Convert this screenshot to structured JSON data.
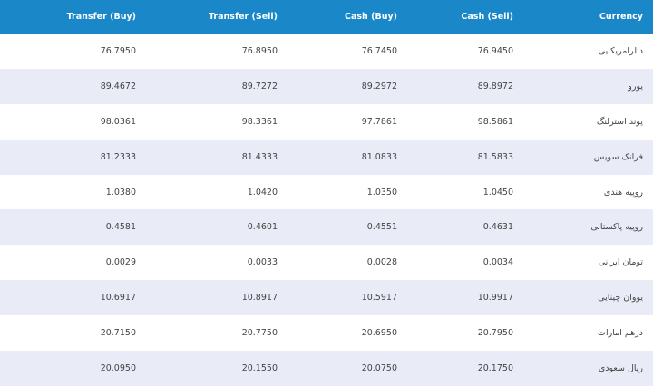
{
  "header": {
    "transfer_buy": "Transfer (Buy)",
    "transfer_sell": "Transfer (Sell)",
    "cash_buy": "Cash (Buy)",
    "cash_sell": "Cash (Sell)",
    "currency": "Currency"
  },
  "rows": [
    {
      "transfer_buy": "76.7950",
      "transfer_sell": "76.8950",
      "cash_buy": "76.7450",
      "cash_sell": "76.9450",
      "currency": "دالرامریکایی"
    },
    {
      "transfer_buy": "89.4672",
      "transfer_sell": "89.7272",
      "cash_buy": "89.2972",
      "cash_sell": "89.8972",
      "currency": "یورو"
    },
    {
      "transfer_buy": "98.0361",
      "transfer_sell": "98.3361",
      "cash_buy": "97.7861",
      "cash_sell": "98.5861",
      "currency": "پوند استرلنگ"
    },
    {
      "transfer_buy": "81.2333",
      "transfer_sell": "81.4333",
      "cash_buy": "81.0833",
      "cash_sell": "81.5833",
      "currency": "فرانک سویس"
    },
    {
      "transfer_buy": "1.0380",
      "transfer_sell": "1.0420",
      "cash_buy": "1.0350",
      "cash_sell": "1.0450",
      "currency": "روپیه هندی"
    },
    {
      "transfer_buy": "0.4581",
      "transfer_sell": "0.4601",
      "cash_buy": "0.4551",
      "cash_sell": "0.4631",
      "currency": "روپیه پاکستانی"
    },
    {
      "transfer_buy": "0.0029",
      "transfer_sell": "0.0033",
      "cash_buy": "0.0028",
      "cash_sell": "0.0034",
      "currency": "تومان ایرانی"
    },
    {
      "transfer_buy": "10.6917",
      "transfer_sell": "10.8917",
      "cash_buy": "10.5917",
      "cash_sell": "10.9917",
      "currency": "یووان چینایی"
    },
    {
      "transfer_buy": "20.7150",
      "transfer_sell": "20.7750",
      "cash_buy": "20.6950",
      "cash_sell": "20.7950",
      "currency": "درهم امارات"
    },
    {
      "transfer_buy": "20.0950",
      "transfer_sell": "20.1550",
      "cash_buy": "20.0750",
      "cash_sell": "20.1750",
      "currency": "ریال سعودی"
    }
  ],
  "colors": {
    "header_bg": "#1a87c9",
    "row_alt_bg": "#e9ebf7"
  }
}
